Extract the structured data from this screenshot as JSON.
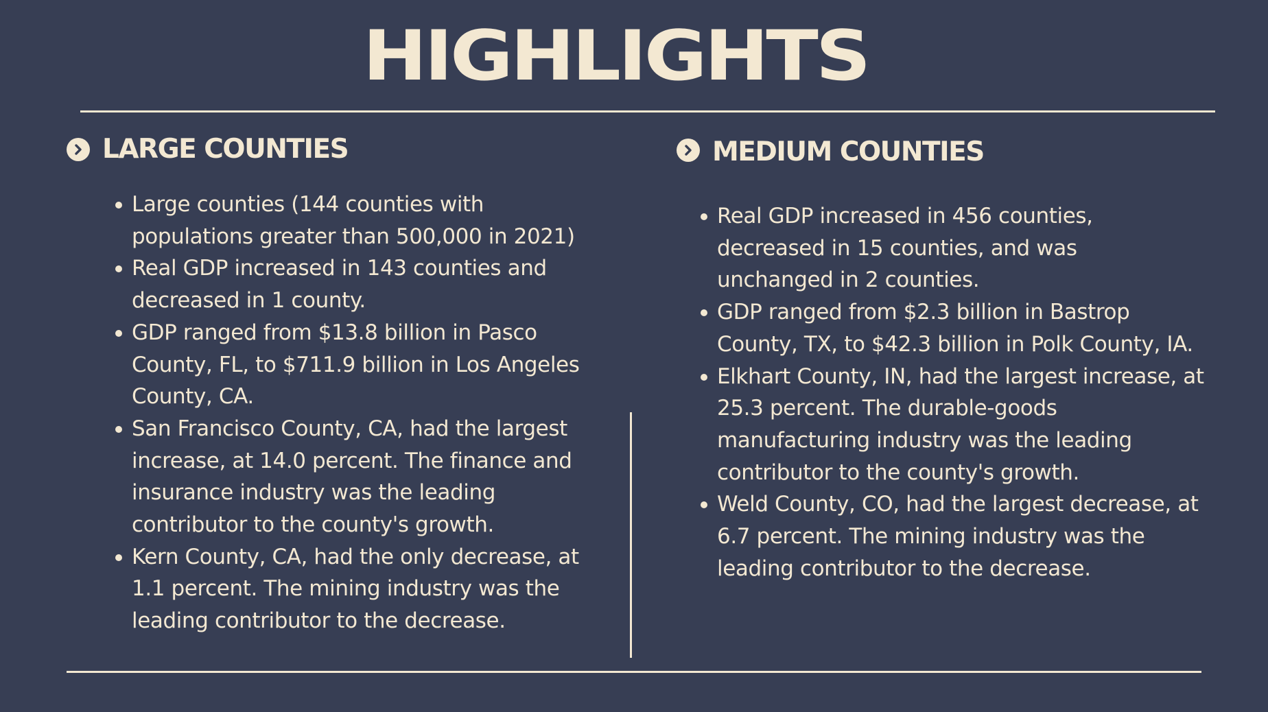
{
  "title": "HIGHLIGHTS",
  "left_column": {
    "heading": "LARGE COUNTIES",
    "icon": "chevron-right-circle-icon",
    "bullets": [
      "Large counties (144 counties with\npopulations greater than 500,000 in 2021)",
      "Real GDP increased in 143 counties and\ndecreased in 1 county.",
      "GDP ranged from $13.8 billion in Pasco\nCounty, FL, to $711.9 billion in Los Angeles\nCounty, CA.",
      " San Francisco County, CA, had the largest\nincrease, at 14.0 percent. The finance and\ninsurance industry was the leading\ncontributor to the county's growth.",
      "  Kern County, CA, had the only decrease, at\n1.1 percent. The mining industry was the\nleading contributor to the decrease."
    ]
  },
  "right_column": {
    "heading": "MEDIUM COUNTIES",
    "icon": "chevron-right-circle-icon",
    "bullets": [
      "Real GDP increased in 456 counties,\ndecreased in 15 counties, and was\nunchanged in 2 counties.",
      " GDP ranged from $2.3 billion in Bastrop\nCounty, TX, to $42.3 billion in Polk County, IA.",
      "Elkhart County, IN, had the largest increase, at\n25.3 percent. The durable-goods\nmanufacturing industry was the leading\ncontributor to the county's growth.",
      "Weld County, CO, had the largest decrease, at\n6.7 percent. The mining industry was the\nleading contributor to the decrease."
    ]
  },
  "colors": {
    "background": "#373e54",
    "text": "#f3e8d2"
  }
}
